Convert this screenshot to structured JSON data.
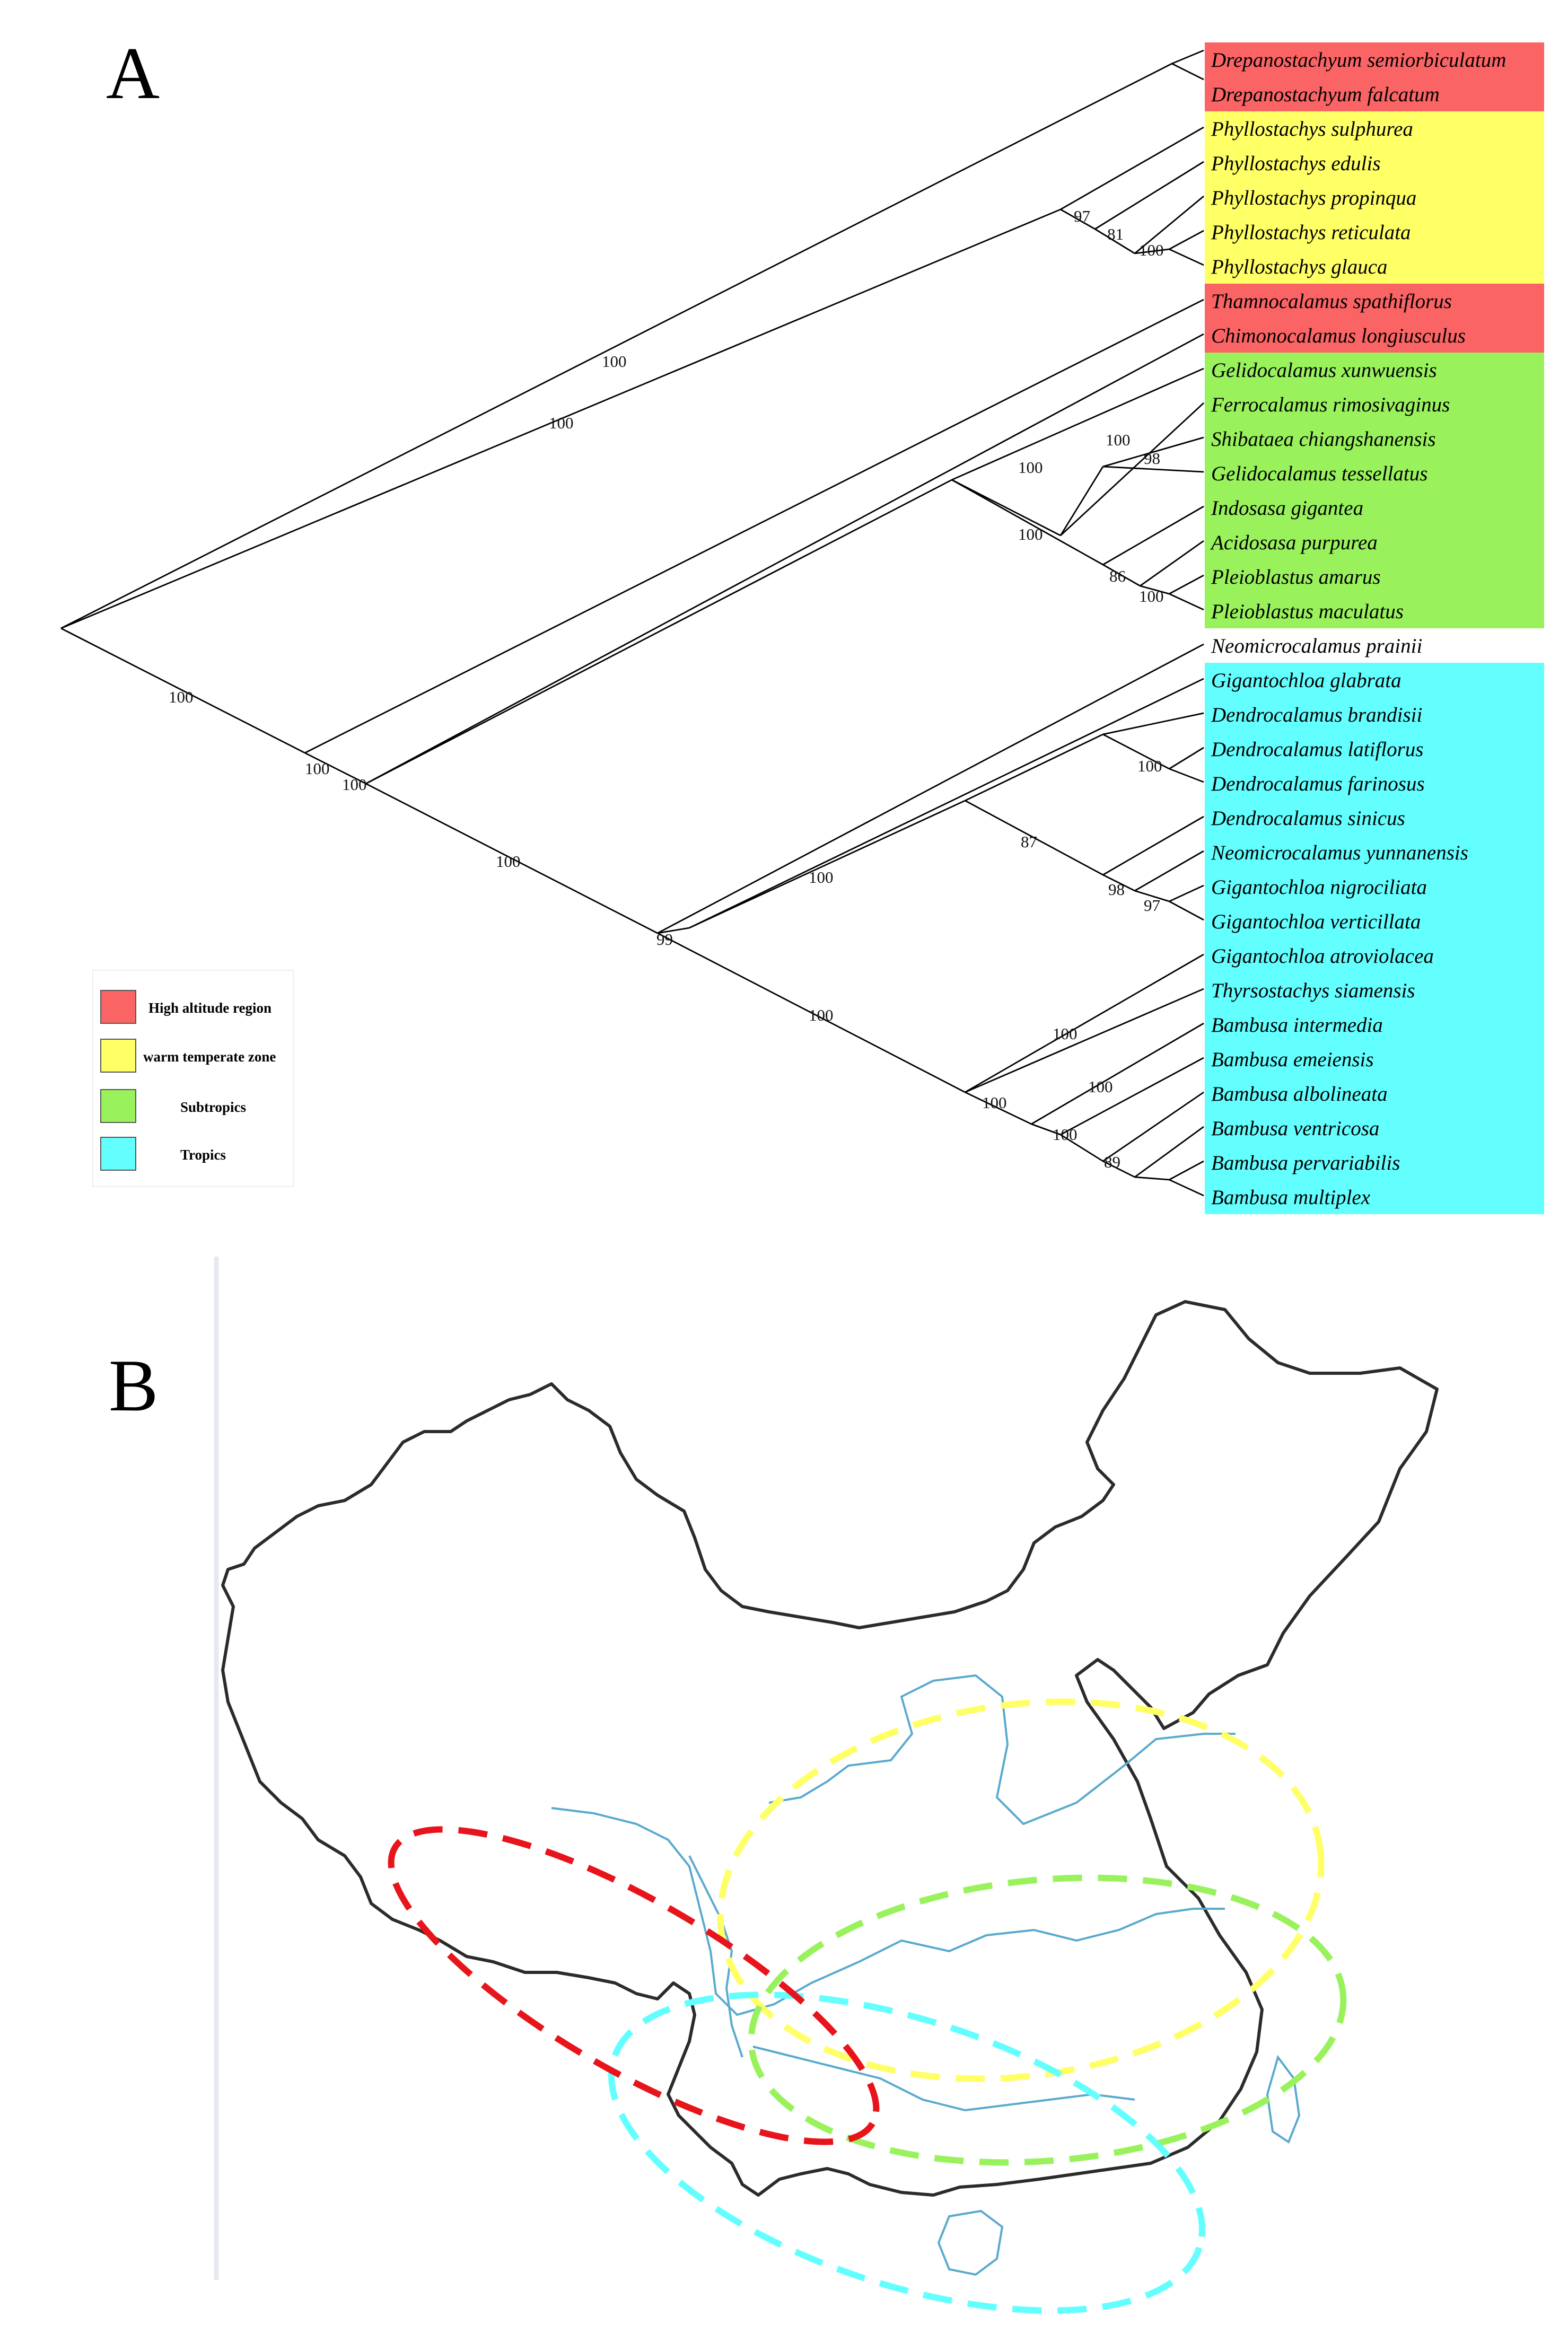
{
  "panels": {
    "a_label": "A",
    "b_label": "B"
  },
  "colors": {
    "high_altitude": "#fb6464",
    "warm_temperate": "#ffff66",
    "subtropics": "#99f25c",
    "tropics": "#63ffff",
    "river": "#5aa9cf",
    "border": "#2b2b2b"
  },
  "legend": [
    {
      "label": "High altitude region",
      "color_key": "high_altitude"
    },
    {
      "label": "warm temperate zone",
      "color_key": "warm_temperate"
    },
    {
      "label": "Subtropics",
      "color_key": "subtropics"
    },
    {
      "label": "Tropics",
      "color_key": "tropics"
    }
  ],
  "taxa": [
    {
      "name": "Drepanostachyum semiorbiculatum",
      "region": "high_altitude"
    },
    {
      "name": "Drepanostachyum falcatum",
      "region": "high_altitude"
    },
    {
      "name": "Phyllostachys sulphurea",
      "region": "warm_temperate"
    },
    {
      "name": "Phyllostachys edulis",
      "region": "warm_temperate"
    },
    {
      "name": "Phyllostachys propinqua",
      "region": "warm_temperate"
    },
    {
      "name": "Phyllostachys reticulata",
      "region": "warm_temperate"
    },
    {
      "name": "Phyllostachys glauca",
      "region": "warm_temperate"
    },
    {
      "name": "Thamnocalamus spathiflorus",
      "region": "high_altitude"
    },
    {
      "name": "Chimonocalamus longiusculus",
      "region": "high_altitude"
    },
    {
      "name": "Gelidocalamus xunwuensis",
      "region": "subtropics"
    },
    {
      "name": "Ferrocalamus rimosivaginus",
      "region": "subtropics"
    },
    {
      "name": "Shibataea chiangshanensis",
      "region": "subtropics"
    },
    {
      "name": "Gelidocalamus tessellatus",
      "region": "subtropics"
    },
    {
      "name": "Indosasa gigantea",
      "region": "subtropics"
    },
    {
      "name": "Acidosasa purpurea",
      "region": "subtropics"
    },
    {
      "name": "Pleioblastus amarus",
      "region": "subtropics"
    },
    {
      "name": "Pleioblastus maculatus",
      "region": "subtropics"
    },
    {
      "name": "Neomicrocalamus prainii",
      "region": ""
    },
    {
      "name": "Gigantochloa glabrata",
      "region": "tropics"
    },
    {
      "name": "Dendrocalamus brandisii",
      "region": "tropics"
    },
    {
      "name": "Dendrocalamus latiflorus",
      "region": "tropics"
    },
    {
      "name": "Dendrocalamus farinosus",
      "region": "tropics"
    },
    {
      "name": "Dendrocalamus sinicus",
      "region": "tropics"
    },
    {
      "name": "Neomicrocalamus yunnanensis",
      "region": "tropics"
    },
    {
      "name": "Gigantochloa nigrociliata",
      "region": "tropics"
    },
    {
      "name": "Gigantochloa verticillata",
      "region": "tropics"
    },
    {
      "name": "Gigantochloa atroviolacea",
      "region": "tropics"
    },
    {
      "name": "Thyrsostachys siamensis",
      "region": "tropics"
    },
    {
      "name": "Bambusa intermedia",
      "region": "tropics"
    },
    {
      "name": "Bambusa emeiensis",
      "region": "tropics"
    },
    {
      "name": "Bambusa albolineata",
      "region": "tropics"
    },
    {
      "name": "Bambusa ventricosa",
      "region": "tropics"
    },
    {
      "name": "Bambusa pervariabilis",
      "region": "tropics"
    },
    {
      "name": "Bambusa multiplex",
      "region": "tropics"
    }
  ],
  "bootstrap": {
    "root_upper": "100",
    "drep_clade": "100",
    "phyllo_97": "97",
    "phyllo_81": "81",
    "phyllo_100": "100",
    "root_lower": "100",
    "core_100a": "100",
    "core_100b": "100",
    "sub_100a": "100",
    "sub_100b": "100",
    "sub_100c": "100",
    "sub_98": "98",
    "sub_86": "86",
    "sub_100d": "100",
    "trop_100a": "100",
    "trop_99": "99",
    "trop_100b": "100",
    "trop_100c": "100",
    "trop_87": "87",
    "trop_98": "98",
    "trop_97": "97",
    "trop_100d": "100",
    "bamb_100a": "100",
    "bamb_100b": "100",
    "bamb_100c": "100",
    "bamb_100d": "100",
    "bamb_89": "89"
  }
}
